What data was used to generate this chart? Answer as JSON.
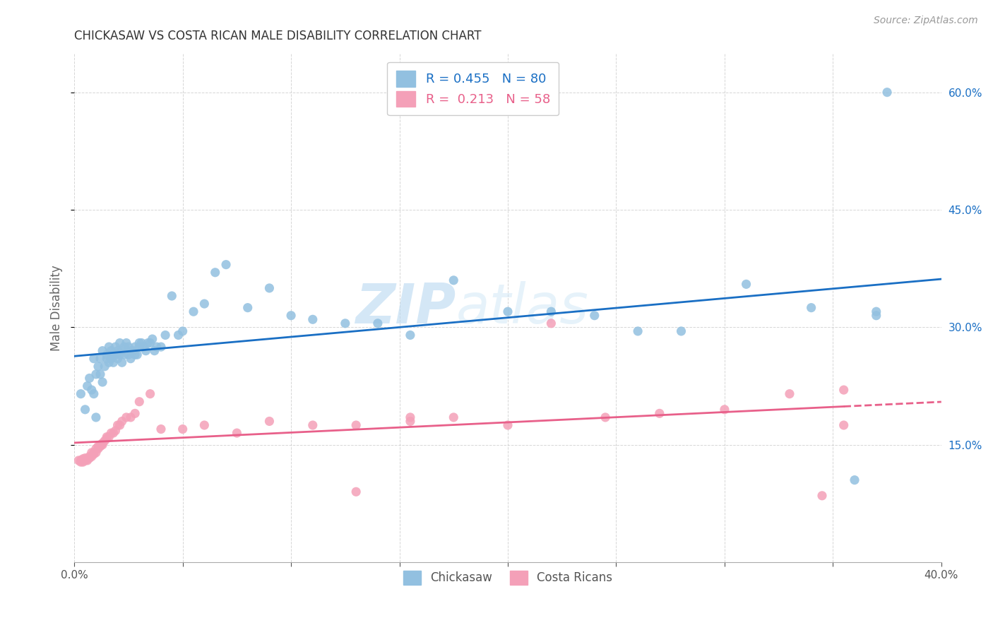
{
  "title": "CHICKASAW VS COSTA RICAN MALE DISABILITY CORRELATION CHART",
  "source": "Source: ZipAtlas.com",
  "ylabel": "Male Disability",
  "watermark_zip": "ZIP",
  "watermark_atlas": "atlas",
  "xmin": 0.0,
  "xmax": 0.4,
  "ymin": 0.0,
  "ymax": 0.65,
  "yticks": [
    0.15,
    0.3,
    0.45,
    0.6
  ],
  "ytick_labels": [
    "15.0%",
    "30.0%",
    "45.0%",
    "60.0%"
  ],
  "xticks": [
    0.0,
    0.05,
    0.1,
    0.15,
    0.2,
    0.25,
    0.3,
    0.35,
    0.4
  ],
  "xtick_labels": [
    "0.0%",
    "",
    "",
    "",
    "",
    "",
    "",
    "",
    "40.0%"
  ],
  "legend_r1": "0.455",
  "legend_n1": "80",
  "legend_r2": "0.213",
  "legend_n2": "58",
  "chickasaw_color": "#92c0e0",
  "costa_rican_color": "#f4a0b8",
  "line1_color": "#1a6fc4",
  "line2_color": "#e8608a",
  "line2_dash_color": "#e8608a",
  "background_color": "#ffffff",
  "grid_color": "#cccccc",
  "title_color": "#333333",
  "axis_label_color": "#666666",
  "tick_color": "#555555",
  "source_color": "#999999",
  "chickasaw_x": [
    0.003,
    0.005,
    0.006,
    0.007,
    0.008,
    0.009,
    0.009,
    0.01,
    0.01,
    0.011,
    0.012,
    0.012,
    0.013,
    0.013,
    0.014,
    0.015,
    0.015,
    0.016,
    0.016,
    0.017,
    0.017,
    0.018,
    0.018,
    0.019,
    0.019,
    0.02,
    0.02,
    0.021,
    0.021,
    0.022,
    0.022,
    0.023,
    0.023,
    0.024,
    0.025,
    0.025,
    0.026,
    0.026,
    0.027,
    0.028,
    0.028,
    0.029,
    0.03,
    0.03,
    0.031,
    0.032,
    0.033,
    0.034,
    0.035,
    0.036,
    0.037,
    0.038,
    0.04,
    0.042,
    0.045,
    0.048,
    0.05,
    0.055,
    0.06,
    0.065,
    0.07,
    0.08,
    0.09,
    0.1,
    0.11,
    0.125,
    0.14,
    0.155,
    0.175,
    0.2,
    0.22,
    0.24,
    0.26,
    0.28,
    0.31,
    0.34,
    0.36,
    0.37,
    0.37,
    0.375
  ],
  "chickasaw_y": [
    0.215,
    0.195,
    0.225,
    0.235,
    0.22,
    0.215,
    0.26,
    0.185,
    0.24,
    0.25,
    0.26,
    0.24,
    0.23,
    0.27,
    0.25,
    0.26,
    0.265,
    0.255,
    0.275,
    0.26,
    0.27,
    0.255,
    0.265,
    0.265,
    0.275,
    0.26,
    0.27,
    0.265,
    0.28,
    0.255,
    0.27,
    0.265,
    0.275,
    0.28,
    0.265,
    0.275,
    0.26,
    0.27,
    0.27,
    0.265,
    0.275,
    0.265,
    0.275,
    0.28,
    0.28,
    0.275,
    0.27,
    0.28,
    0.28,
    0.285,
    0.27,
    0.275,
    0.275,
    0.29,
    0.34,
    0.29,
    0.295,
    0.32,
    0.33,
    0.37,
    0.38,
    0.325,
    0.35,
    0.315,
    0.31,
    0.305,
    0.305,
    0.29,
    0.36,
    0.32,
    0.32,
    0.315,
    0.295,
    0.295,
    0.355,
    0.325,
    0.105,
    0.32,
    0.315,
    0.6
  ],
  "costa_rican_x": [
    0.002,
    0.003,
    0.003,
    0.004,
    0.004,
    0.005,
    0.005,
    0.006,
    0.006,
    0.007,
    0.007,
    0.008,
    0.008,
    0.009,
    0.009,
    0.01,
    0.01,
    0.011,
    0.011,
    0.012,
    0.012,
    0.013,
    0.013,
    0.014,
    0.015,
    0.015,
    0.016,
    0.017,
    0.018,
    0.019,
    0.02,
    0.021,
    0.022,
    0.024,
    0.026,
    0.028,
    0.03,
    0.035,
    0.04,
    0.05,
    0.06,
    0.075,
    0.09,
    0.11,
    0.13,
    0.155,
    0.175,
    0.2,
    0.22,
    0.245,
    0.27,
    0.3,
    0.33,
    0.355,
    0.13,
    0.155,
    0.345,
    0.355
  ],
  "costa_rican_y": [
    0.13,
    0.128,
    0.13,
    0.128,
    0.132,
    0.13,
    0.133,
    0.13,
    0.132,
    0.135,
    0.133,
    0.135,
    0.14,
    0.138,
    0.14,
    0.14,
    0.145,
    0.145,
    0.148,
    0.15,
    0.148,
    0.15,
    0.152,
    0.155,
    0.158,
    0.16,
    0.16,
    0.165,
    0.165,
    0.168,
    0.175,
    0.175,
    0.18,
    0.185,
    0.185,
    0.19,
    0.205,
    0.215,
    0.17,
    0.17,
    0.175,
    0.165,
    0.18,
    0.175,
    0.175,
    0.18,
    0.185,
    0.175,
    0.305,
    0.185,
    0.19,
    0.195,
    0.215,
    0.175,
    0.09,
    0.185,
    0.085,
    0.22
  ]
}
